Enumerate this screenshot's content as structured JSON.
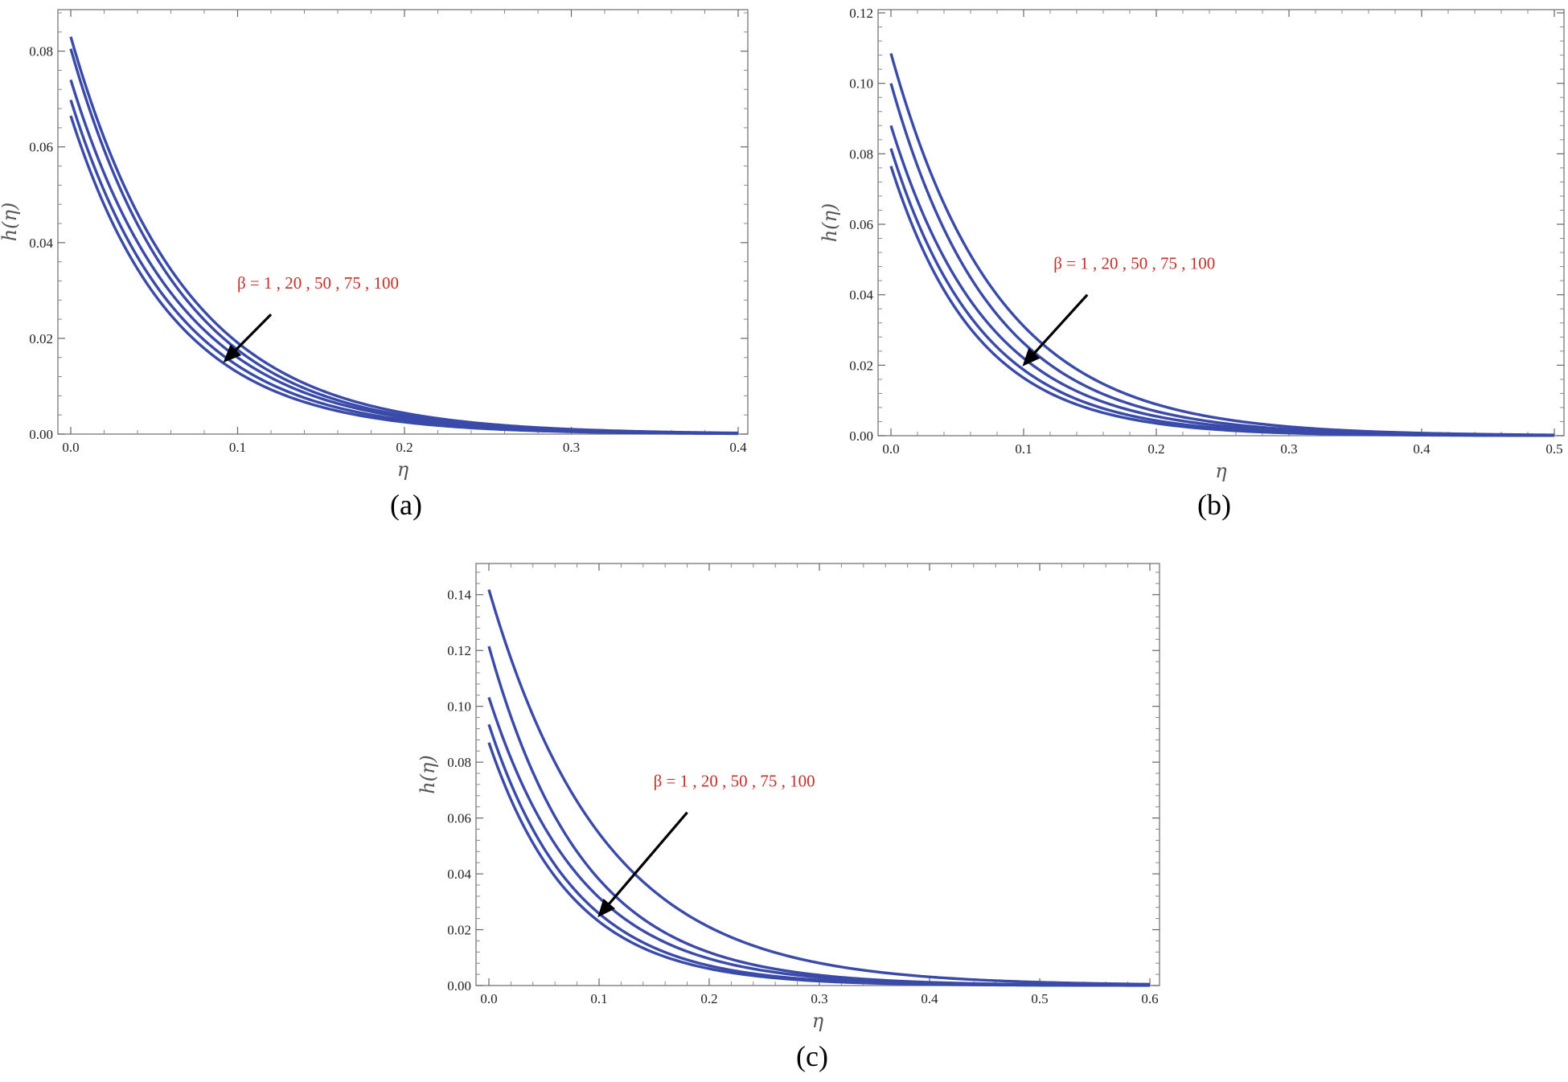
{
  "chart_data": [
    {
      "type": "line",
      "caption": "(a)",
      "xlabel": "η",
      "ylabel": "h(η)",
      "xlim": [
        0,
        0.4
      ],
      "ylim": [
        0,
        0.088
      ],
      "xticks": [
        "0.0",
        "0.1",
        "0.2",
        "0.3",
        "0.4"
      ],
      "yticks": [
        "0.00",
        "0.02",
        "0.04",
        "0.06",
        "0.08"
      ],
      "annotation": "β = 1 , 20 , 50 , 75 , 100",
      "arrow": {
        "from": [
          0.12,
          0.025
        ],
        "to": [
          0.093,
          0.0155
        ]
      },
      "line_color": "#3a4aa8",
      "series": [
        {
          "name": "β = 1",
          "h0": 0.083,
          "values": [
            0.083,
            0.0191,
            0.0044,
            0.001,
            0.0002
          ]
        },
        {
          "name": "β = 20",
          "h0": 0.0805,
          "values": [
            0.0805,
            0.0176,
            0.0039,
            0.0008,
            0.0002
          ]
        },
        {
          "name": "β = 50",
          "h0": 0.074,
          "values": [
            0.074,
            0.016,
            0.0035,
            0.0007,
            0.0002
          ]
        },
        {
          "name": "β = 75",
          "h0": 0.0698,
          "values": [
            0.0698,
            0.0143,
            0.0029,
            0.0006,
            0.0001
          ]
        },
        {
          "name": "β = 100",
          "h0": 0.0665,
          "values": [
            0.0665,
            0.0129,
            0.0025,
            0.0005,
            0.0001
          ]
        }
      ]
    },
    {
      "type": "line",
      "caption": "(b)",
      "xlabel": "η",
      "ylabel": "h(η)",
      "xlim": [
        0,
        0.5
      ],
      "ylim": [
        0,
        0.12
      ],
      "xticks": [
        "0.0",
        "0.1",
        "0.2",
        "0.3",
        "0.4",
        "0.5"
      ],
      "yticks": [
        "0.00",
        "0.02",
        "0.04",
        "0.06",
        "0.08",
        "0.10",
        "0.12"
      ],
      "annotation": "β = 1 , 20 , 50 , 75 , 100",
      "arrow": {
        "from": [
          0.148,
          0.04
        ],
        "to": [
          0.101,
          0.0205
        ]
      },
      "line_color": "#3a4aa8",
      "series": [
        {
          "name": "β = 1",
          "h0": 0.1085,
          "values": [
            0.1085,
            0.0311,
            0.0089,
            0.0026,
            0.0007,
            0.0002
          ]
        },
        {
          "name": "β = 20",
          "h0": 0.1,
          "values": [
            0.1,
            0.0263,
            0.0069,
            0.0018,
            0.0005,
            0.0001
          ]
        },
        {
          "name": "β = 50",
          "h0": 0.088,
          "values": [
            0.088,
            0.022,
            0.0055,
            0.0014,
            0.0003,
            0.0001
          ]
        },
        {
          "name": "β = 75",
          "h0": 0.0815,
          "values": [
            0.0815,
            0.0187,
            0.0043,
            0.001,
            0.0002,
            0.0001
          ]
        },
        {
          "name": "β = 100",
          "h0": 0.0765,
          "values": [
            0.0765,
            0.0164,
            0.0035,
            0.0008,
            0.0002,
            0.0001
          ]
        }
      ]
    },
    {
      "type": "line",
      "caption": "(c)",
      "xlabel": "η",
      "ylabel": "h(η)",
      "xlim": [
        0,
        0.6
      ],
      "ylim": [
        0,
        0.15
      ],
      "xticks": [
        "0.0",
        "0.1",
        "0.2",
        "0.3",
        "0.4",
        "0.5",
        "0.6"
      ],
      "yticks": [
        "0.00",
        "0.02",
        "0.04",
        "0.06",
        "0.08",
        "0.10",
        "0.12",
        "0.14"
      ],
      "annotation": "β = 1 , 20 , 50 , 75 , 100",
      "arrow": {
        "from": [
          0.18,
          0.062
        ],
        "to": [
          0.101,
          0.0255
        ]
      },
      "line_color": "#3a4aa8",
      "series": [
        {
          "name": "β = 1",
          "h0": 0.1418,
          "values": [
            0.1418,
            0.0545,
            0.021,
            0.0081,
            0.0031,
            0.0012,
            0.0005
          ]
        },
        {
          "name": "β = 20",
          "h0": 0.1215,
          "values": [
            0.1215,
            0.038,
            0.0119,
            0.0037,
            0.0012,
            0.0004,
            0.0001
          ]
        },
        {
          "name": "β = 50",
          "h0": 0.1032,
          "values": [
            0.1032,
            0.0315,
            0.0096,
            0.0029,
            0.0009,
            0.0003,
            0.0001
          ]
        },
        {
          "name": "β = 75",
          "h0": 0.0935,
          "values": [
            0.0935,
            0.0258,
            0.0071,
            0.002,
            0.0005,
            0.0002,
            0.0001
          ]
        },
        {
          "name": "β = 100",
          "h0": 0.087,
          "values": [
            0.087,
            0.0229,
            0.006,
            0.0016,
            0.0004,
            0.0001,
            0.0001
          ]
        }
      ]
    }
  ]
}
